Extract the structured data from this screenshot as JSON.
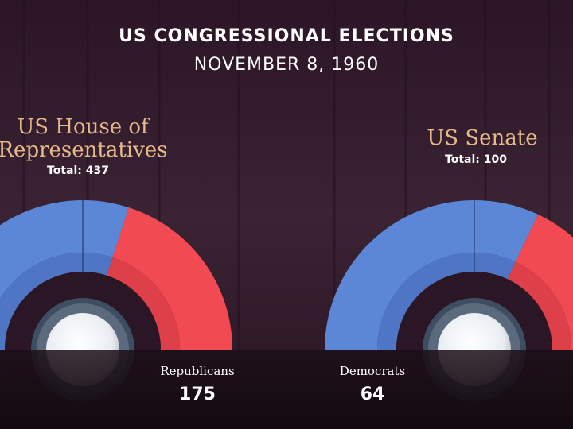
{
  "header": {
    "title": "US CONGRESSIONAL ELECTIONS",
    "date": "NOVEMBER 8, 1960"
  },
  "colors": {
    "democrat": "#5b87d6",
    "democrat_inner": "#4f76c4",
    "republican": "#f24a52",
    "republican_inner": "#dd4048",
    "heading": "#e8b98a"
  },
  "chart_data": [
    {
      "type": "pie",
      "title_lines": [
        "US House of",
        "Representatives"
      ],
      "total_label": "Total: 437",
      "total": 437,
      "series": [
        {
          "name": "Democrats",
          "value": 262
        },
        {
          "name": "Republicans",
          "value": 175
        }
      ],
      "labels": {
        "party": "Republicans",
        "count": "175"
      }
    },
    {
      "type": "pie",
      "title_lines": [
        "US Senate"
      ],
      "total_label": "Total: 100",
      "total": 100,
      "series": [
        {
          "name": "Democrats",
          "value": 64
        },
        {
          "name": "Republicans",
          "value": 36
        }
      ],
      "labels": {
        "party": "Democrats",
        "count": "64"
      }
    }
  ]
}
